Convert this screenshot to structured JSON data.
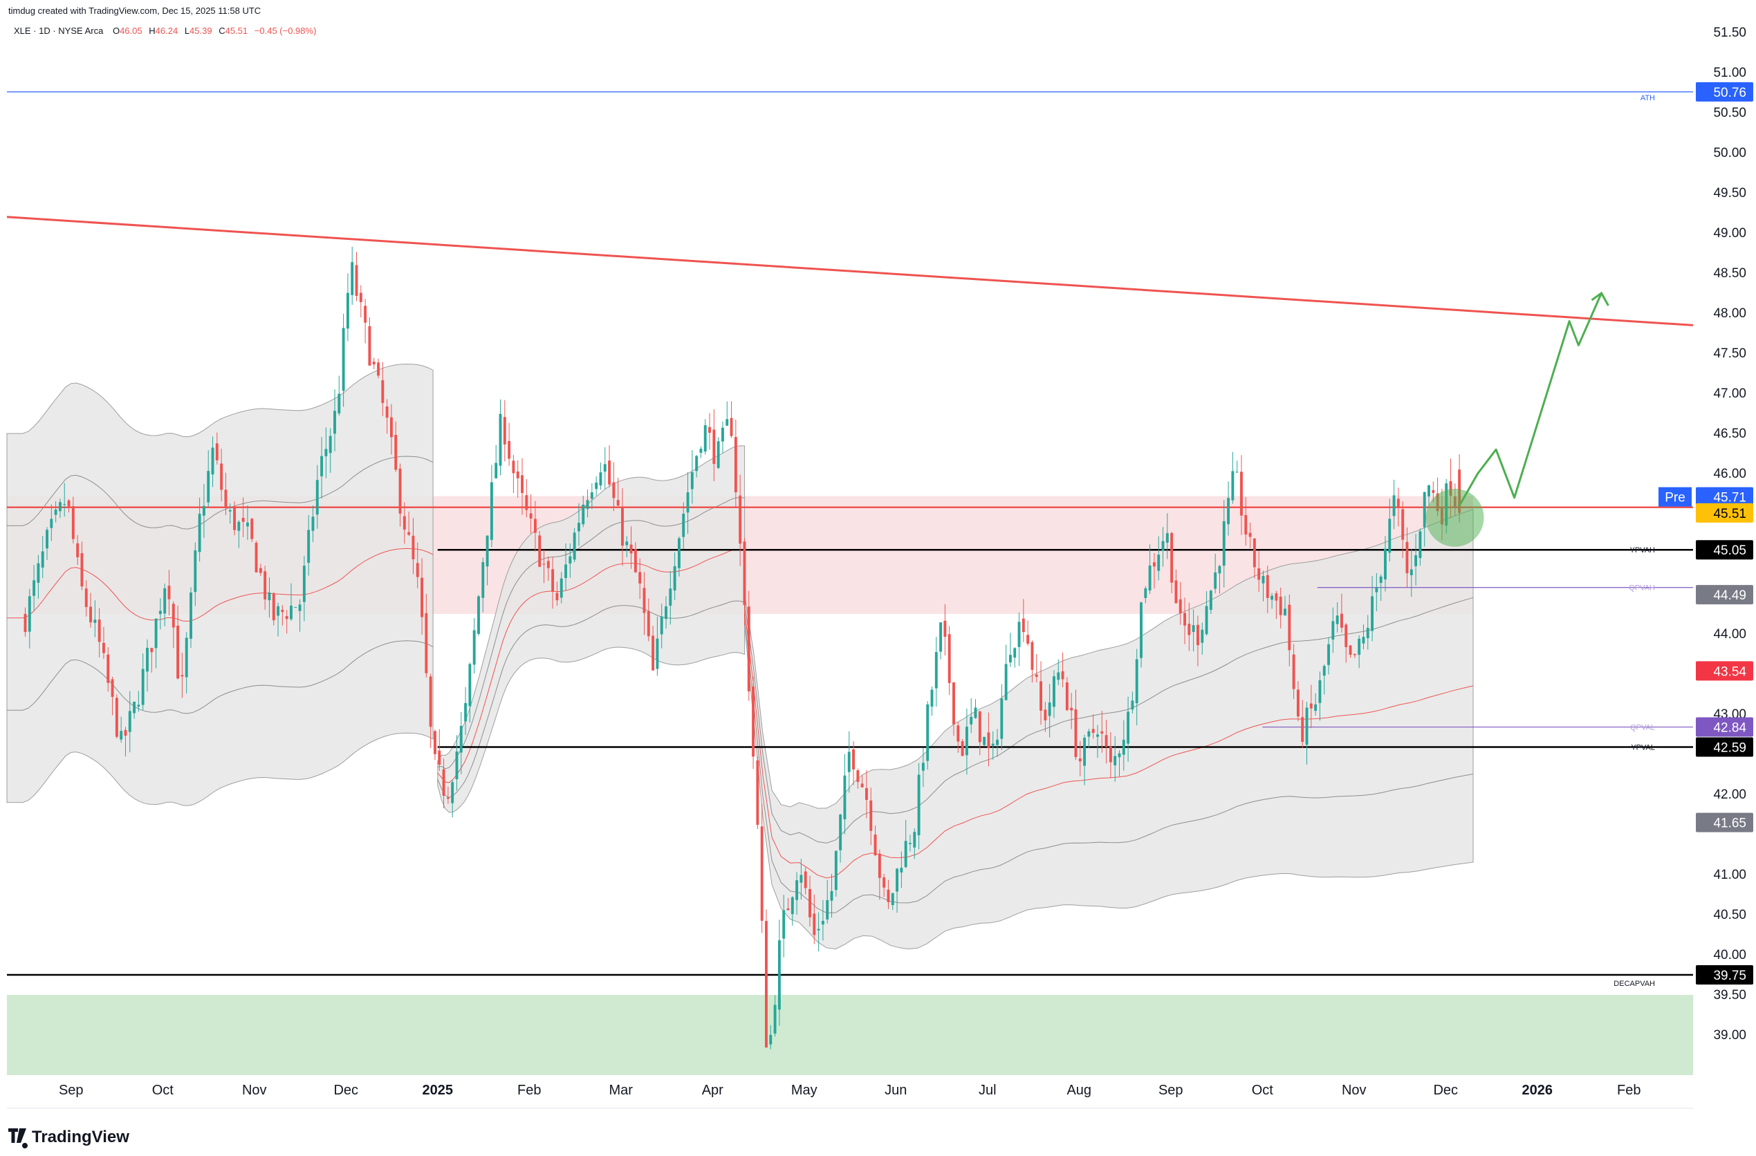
{
  "header": {
    "creator": "timdug created with TradingView.com, Dec 15, 2025 11:58 UTC",
    "ticker": "XLE · 1D · NYSE Arca",
    "o_label": "O",
    "o": "46.05",
    "h_label": "H",
    "h": "46.24",
    "l_label": "L",
    "l": "45.39",
    "c_label": "C",
    "c": "45.51",
    "change": "−0.45 (−0.98%)"
  },
  "footer": {
    "brand": "TradingView"
  },
  "colors": {
    "up": "#26a69a",
    "down": "#ef5350",
    "trendline": "#ef5350",
    "projection": "#4caf50",
    "ath": "#2962ff",
    "value_zone": "#f8d7da",
    "band": "#e6e6e6",
    "demand_zone": "#c8e6c9",
    "poc": "#ef5350"
  },
  "chart_data": {
    "type": "candlestick",
    "ticker": "XLE",
    "interval": "1D",
    "yscale": "linear",
    "ylim": [
      38.5,
      51.75
    ],
    "yticks": [
      "51.50",
      "51.00",
      "50.50",
      "50.00",
      "49.50",
      "49.00",
      "48.50",
      "48.00",
      "47.50",
      "47.00",
      "46.50",
      "46.00",
      "44.00",
      "43.00",
      "42.00",
      "41.00",
      "40.50",
      "40.00",
      "39.50",
      "39.00"
    ],
    "xticks": [
      {
        "label": "Sep",
        "t": 0.5,
        "bold": false
      },
      {
        "label": "Oct",
        "t": 1.5,
        "bold": false
      },
      {
        "label": "Nov",
        "t": 2.5,
        "bold": false
      },
      {
        "label": "Dec",
        "t": 3.5,
        "bold": false
      },
      {
        "label": "2025",
        "t": 4.5,
        "bold": true
      },
      {
        "label": "Feb",
        "t": 5.5,
        "bold": false
      },
      {
        "label": "Mar",
        "t": 6.5,
        "bold": false
      },
      {
        "label": "Apr",
        "t": 7.5,
        "bold": false
      },
      {
        "label": "May",
        "t": 8.5,
        "bold": false
      },
      {
        "label": "Jun",
        "t": 9.5,
        "bold": false
      },
      {
        "label": "Jul",
        "t": 10.5,
        "bold": false
      },
      {
        "label": "Aug",
        "t": 11.5,
        "bold": false
      },
      {
        "label": "Sep",
        "t": 12.5,
        "bold": false
      },
      {
        "label": "Oct",
        "t": 13.5,
        "bold": false
      },
      {
        "label": "Nov",
        "t": 14.5,
        "bold": false
      },
      {
        "label": "Dec",
        "t": 15.5,
        "bold": false
      },
      {
        "label": "2026",
        "t": 16.5,
        "bold": true
      },
      {
        "label": "Feb",
        "t": 17.5,
        "bold": false
      }
    ],
    "t_range": [
      -0.2,
      18.2
    ],
    "price_path": [
      [
        0.0,
        44.2
      ],
      [
        0.25,
        45.2
      ],
      [
        0.45,
        45.7
      ],
      [
        0.6,
        44.6
      ],
      [
        0.8,
        43.9
      ],
      [
        1.05,
        42.6
      ],
      [
        1.2,
        43.1
      ],
      [
        1.4,
        44.0
      ],
      [
        1.55,
        44.8
      ],
      [
        1.7,
        43.2
      ],
      [
        1.9,
        45.4
      ],
      [
        2.05,
        46.3
      ],
      [
        2.2,
        45.5
      ],
      [
        2.45,
        45.2
      ],
      [
        2.7,
        44.2
      ],
      [
        3.0,
        44.4
      ],
      [
        3.2,
        46.0
      ],
      [
        3.4,
        46.8
      ],
      [
        3.55,
        48.6
      ],
      [
        3.7,
        47.8
      ],
      [
        3.95,
        46.6
      ],
      [
        4.1,
        45.6
      ],
      [
        4.3,
        44.5
      ],
      [
        4.45,
        42.4
      ],
      [
        4.6,
        42.0
      ],
      [
        4.8,
        43.0
      ],
      [
        5.0,
        45.0
      ],
      [
        5.2,
        46.7
      ],
      [
        5.35,
        45.9
      ],
      [
        5.55,
        45.2
      ],
      [
        5.8,
        44.4
      ],
      [
        6.1,
        45.7
      ],
      [
        6.3,
        46.2
      ],
      [
        6.5,
        45.3
      ],
      [
        6.7,
        44.6
      ],
      [
        6.85,
        43.5
      ],
      [
        7.0,
        44.5
      ],
      [
        7.25,
        45.9
      ],
      [
        7.4,
        46.6
      ],
      [
        7.55,
        46.2
      ],
      [
        7.7,
        46.7
      ],
      [
        7.85,
        44.3
      ],
      [
        8.0,
        41.4
      ],
      [
        8.1,
        38.6
      ],
      [
        8.25,
        40.3
      ],
      [
        8.45,
        41.2
      ],
      [
        8.6,
        40.2
      ],
      [
        8.8,
        40.8
      ],
      [
        9.0,
        42.6
      ],
      [
        9.2,
        41.9
      ],
      [
        9.4,
        40.5
      ],
      [
        9.55,
        41.2
      ],
      [
        9.7,
        41.6
      ],
      [
        9.85,
        43.0
      ],
      [
        10.0,
        44.1
      ],
      [
        10.2,
        42.5
      ],
      [
        10.35,
        43.0
      ],
      [
        10.55,
        42.4
      ],
      [
        10.75,
        43.9
      ],
      [
        10.9,
        44.2
      ],
      [
        11.1,
        42.9
      ],
      [
        11.3,
        43.6
      ],
      [
        11.5,
        42.4
      ],
      [
        11.7,
        42.9
      ],
      [
        11.85,
        42.3
      ],
      [
        12.05,
        43.0
      ],
      [
        12.2,
        44.6
      ],
      [
        12.45,
        45.3
      ],
      [
        12.6,
        44.1
      ],
      [
        12.8,
        44.0
      ],
      [
        13.0,
        44.8
      ],
      [
        13.2,
        46.0
      ],
      [
        13.35,
        45.1
      ],
      [
        13.5,
        44.6
      ],
      [
        13.75,
        44.3
      ],
      [
        13.9,
        42.7
      ],
      [
        14.1,
        43.2
      ],
      [
        14.3,
        44.2
      ],
      [
        14.45,
        43.6
      ],
      [
        14.6,
        43.9
      ],
      [
        14.75,
        44.6
      ],
      [
        14.95,
        45.7
      ],
      [
        15.1,
        44.6
      ],
      [
        15.3,
        45.9
      ],
      [
        15.45,
        45.5
      ],
      [
        15.55,
        45.9
      ],
      [
        15.65,
        45.51
      ]
    ],
    "series": [
      {
        "name": "Daily candles XLE",
        "points": "generated from price_path; last close 45.51"
      }
    ],
    "levels": [
      {
        "name": "ATH",
        "price": 50.76,
        "label": "ATH",
        "color": "#2962ff",
        "t_start": -0.2
      },
      {
        "name": "YPVAH",
        "price": 45.05,
        "label": "YPVAH",
        "color": "#000000",
        "t_start": 4.5
      },
      {
        "name": "QPVAH",
        "price": 44.58,
        "label": "QPVAH",
        "color": "#7e57c2",
        "t_start": 14.1
      },
      {
        "name": "QPVAL",
        "price": 42.84,
        "label": "QPVAL",
        "color": "#7e57c2",
        "t_start": 13.5
      },
      {
        "name": "YPVAL",
        "price": 42.59,
        "label": "YPVAL",
        "color": "#000000",
        "t_start": 4.5
      },
      {
        "name": "DECAPVAH",
        "price": 39.75,
        "label": "DECAPVAH",
        "color": "#000000",
        "t_start": -0.2
      },
      {
        "name": "POC",
        "price": 45.58,
        "label": "",
        "color": "#ef5350",
        "t_start": -0.2
      }
    ],
    "trendline": {
      "t": [
        -0.2,
        18.2
      ],
      "price": [
        49.2,
        47.85
      ]
    },
    "projection": {
      "t": [
        15.65,
        15.85,
        16.05,
        16.25,
        16.85,
        16.95,
        17.2
      ],
      "price": [
        45.6,
        46.0,
        46.3,
        45.7,
        47.9,
        47.6,
        48.25
      ]
    },
    "value_zone": {
      "t": [
        -0.2,
        15.8
      ],
      "price": [
        44.25,
        45.72
      ]
    },
    "demand_zone": {
      "t": [
        -0.2,
        18.2
      ],
      "price": [
        38.5,
        39.5
      ]
    },
    "price_labels": [
      {
        "text": "50.76",
        "price": 50.76,
        "bg": "#2962ff",
        "fg": "#ffffff"
      },
      {
        "text": "Pre",
        "price": 45.71,
        "bg": "#2962ff",
        "fg": "#ffffff",
        "tag": true
      },
      {
        "text": "45.71",
        "price": 45.71,
        "bg": "#2962ff",
        "fg": "#ffffff"
      },
      {
        "text": "45.51",
        "price": 45.51,
        "bg": "#ffc107",
        "fg": "#000000"
      },
      {
        "text": "45.05",
        "price": 45.05,
        "bg": "#000000",
        "fg": "#ffffff"
      },
      {
        "text": "44.49",
        "price": 44.49,
        "bg": "#787b86",
        "fg": "#ffffff"
      },
      {
        "text": "43.54",
        "price": 43.54,
        "bg": "#f23645",
        "fg": "#ffffff"
      },
      {
        "text": "42.84",
        "price": 42.84,
        "bg": "#7e57c2",
        "fg": "#ffffff"
      },
      {
        "text": "42.59",
        "price": 42.59,
        "bg": "#000000",
        "fg": "#ffffff"
      },
      {
        "text": "41.65",
        "price": 41.65,
        "bg": "#787b86",
        "fg": "#ffffff"
      },
      {
        "text": "39.75",
        "price": 39.75,
        "bg": "#000000",
        "fg": "#ffffff"
      }
    ],
    "highlight_circle": {
      "t": 15.6,
      "price": 45.45
    }
  }
}
